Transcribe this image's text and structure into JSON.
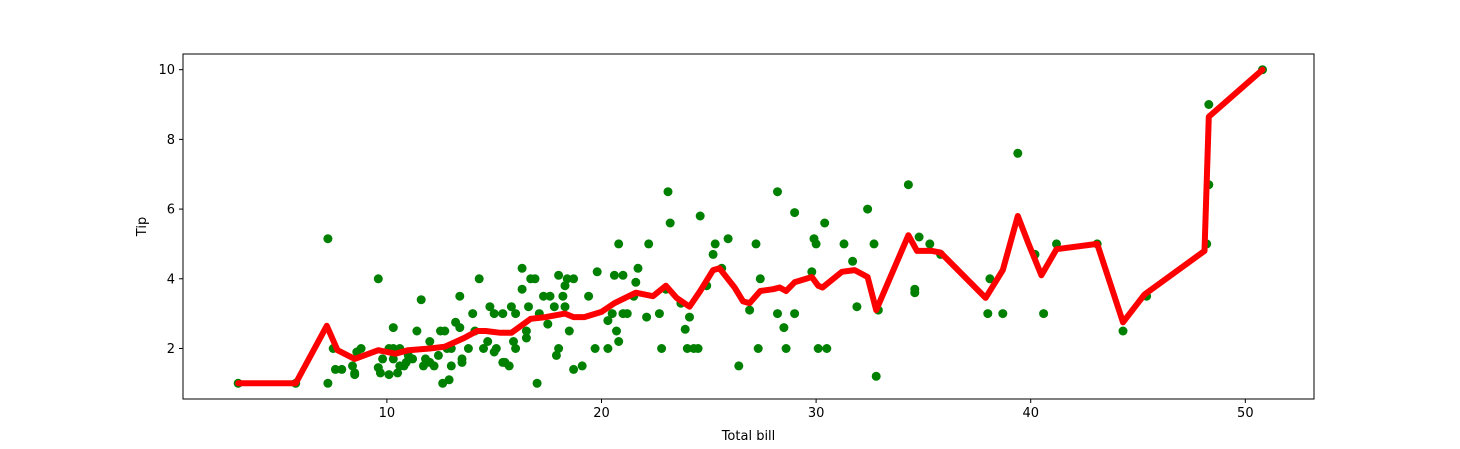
{
  "chart_data": {
    "type": "scatter",
    "xlabel": "Total bill",
    "ylabel": "Tip",
    "xlim": [
      0.5,
      53.2
    ],
    "ylim": [
      0.55,
      10.45
    ],
    "xticks": [
      10,
      20,
      30,
      40,
      50
    ],
    "yticks": [
      2,
      4,
      6,
      8,
      10
    ],
    "grid": false,
    "colors": {
      "points": "#008000",
      "line": "#ff0000",
      "axes": "#000000"
    },
    "series": [
      {
        "type": "scatter",
        "color": "#008000",
        "points": [
          [
            3.07,
            1.0
          ],
          [
            5.75,
            1.0
          ],
          [
            7.25,
            1.0
          ],
          [
            7.25,
            5.15
          ],
          [
            7.5,
            2.0
          ],
          [
            7.6,
            1.4
          ],
          [
            7.9,
            1.4
          ],
          [
            8.4,
            1.5
          ],
          [
            8.5,
            1.3
          ],
          [
            8.6,
            1.9
          ],
          [
            8.8,
            2.0
          ],
          [
            8.5,
            1.25
          ],
          [
            9.6,
            4.0
          ],
          [
            9.6,
            1.45
          ],
          [
            9.7,
            1.3
          ],
          [
            9.8,
            1.7
          ],
          [
            10.1,
            2.0
          ],
          [
            10.1,
            1.25
          ],
          [
            10.3,
            1.7
          ],
          [
            10.3,
            2.6
          ],
          [
            10.3,
            2.0
          ],
          [
            10.5,
            1.3
          ],
          [
            10.6,
            1.5
          ],
          [
            10.6,
            2.0
          ],
          [
            10.8,
            1.5
          ],
          [
            10.9,
            1.6
          ],
          [
            11.0,
            1.8
          ],
          [
            11.2,
            1.7
          ],
          [
            11.4,
            2.5
          ],
          [
            11.6,
            3.4
          ],
          [
            11.7,
            1.5
          ],
          [
            11.8,
            1.7
          ],
          [
            12.0,
            1.6
          ],
          [
            12.0,
            2.2
          ],
          [
            12.2,
            1.5
          ],
          [
            12.4,
            1.8
          ],
          [
            12.5,
            2.5
          ],
          [
            12.6,
            1.0
          ],
          [
            12.7,
            2.5
          ],
          [
            12.8,
            2.0
          ],
          [
            12.9,
            1.1
          ],
          [
            13.0,
            1.5
          ],
          [
            13.0,
            2.0
          ],
          [
            13.2,
            2.75
          ],
          [
            13.4,
            2.6
          ],
          [
            13.4,
            3.5
          ],
          [
            13.5,
            1.6
          ],
          [
            13.5,
            1.7
          ],
          [
            13.8,
            2.0
          ],
          [
            14.0,
            3.0
          ],
          [
            14.1,
            2.5
          ],
          [
            14.3,
            4.0
          ],
          [
            14.5,
            2.0
          ],
          [
            14.7,
            2.2
          ],
          [
            14.8,
            3.2
          ],
          [
            15.0,
            1.9
          ],
          [
            15.0,
            3.0
          ],
          [
            15.1,
            2.0
          ],
          [
            15.4,
            1.6
          ],
          [
            15.4,
            3.0
          ],
          [
            15.5,
            1.6
          ],
          [
            15.7,
            1.5
          ],
          [
            15.8,
            3.2
          ],
          [
            15.9,
            2.2
          ],
          [
            16.0,
            3.0
          ],
          [
            16.0,
            2.0
          ],
          [
            16.3,
            3.7
          ],
          [
            16.3,
            4.3
          ],
          [
            16.5,
            2.3
          ],
          [
            16.5,
            2.5
          ],
          [
            16.6,
            3.2
          ],
          [
            16.7,
            4.0
          ],
          [
            16.9,
            4.0
          ],
          [
            17.0,
            1.0
          ],
          [
            17.1,
            3.0
          ],
          [
            17.3,
            3.5
          ],
          [
            17.5,
            2.7
          ],
          [
            17.6,
            3.5
          ],
          [
            17.8,
            3.2
          ],
          [
            17.9,
            1.8
          ],
          [
            18.0,
            4.1
          ],
          [
            18.0,
            2.0
          ],
          [
            18.2,
            3.5
          ],
          [
            18.3,
            3.8
          ],
          [
            18.3,
            3.2
          ],
          [
            18.4,
            4.0
          ],
          [
            18.5,
            2.5
          ],
          [
            18.7,
            1.4
          ],
          [
            18.7,
            4.0
          ],
          [
            19.1,
            1.5
          ],
          [
            19.4,
            3.5
          ],
          [
            19.7,
            2.0
          ],
          [
            19.8,
            4.2
          ],
          [
            20.3,
            2.0
          ],
          [
            20.3,
            2.8
          ],
          [
            20.5,
            3.0
          ],
          [
            20.6,
            4.1
          ],
          [
            20.7,
            2.5
          ],
          [
            20.8,
            2.2
          ],
          [
            20.8,
            5.0
          ],
          [
            21.0,
            4.1
          ],
          [
            21.0,
            3.0
          ],
          [
            21.2,
            3.0
          ],
          [
            21.5,
            3.5
          ],
          [
            21.6,
            3.9
          ],
          [
            21.7,
            4.3
          ],
          [
            22.1,
            2.9
          ],
          [
            22.2,
            5.0
          ],
          [
            22.7,
            3.0
          ],
          [
            22.8,
            2.0
          ],
          [
            23.0,
            3.7
          ],
          [
            23.1,
            6.5
          ],
          [
            23.2,
            5.6
          ],
          [
            23.7,
            3.3
          ],
          [
            23.9,
            2.55
          ],
          [
            24.0,
            2.0
          ],
          [
            24.1,
            2.9
          ],
          [
            24.3,
            2.0
          ],
          [
            24.5,
            2.0
          ],
          [
            24.6,
            5.8
          ],
          [
            24.9,
            3.8
          ],
          [
            25.2,
            4.7
          ],
          [
            25.3,
            5.0
          ],
          [
            25.6,
            4.3
          ],
          [
            25.9,
            5.15
          ],
          [
            26.4,
            1.5
          ],
          [
            26.9,
            3.1
          ],
          [
            27.2,
            5.0
          ],
          [
            27.3,
            2.0
          ],
          [
            27.4,
            4.0
          ],
          [
            28.2,
            6.5
          ],
          [
            28.2,
            3.0
          ],
          [
            28.5,
            2.6
          ],
          [
            28.6,
            2.0
          ],
          [
            29.0,
            5.9
          ],
          [
            29.0,
            3.0
          ],
          [
            29.8,
            4.2
          ],
          [
            29.9,
            5.15
          ],
          [
            30.0,
            5.0
          ],
          [
            30.1,
            2.0
          ],
          [
            30.4,
            5.6
          ],
          [
            30.5,
            2.0
          ],
          [
            31.3,
            5.0
          ],
          [
            31.7,
            4.5
          ],
          [
            31.9,
            3.2
          ],
          [
            32.4,
            6.0
          ],
          [
            32.7,
            5.0
          ],
          [
            32.8,
            1.2
          ],
          [
            32.9,
            3.1
          ],
          [
            34.3,
            6.7
          ],
          [
            34.6,
            3.7
          ],
          [
            34.6,
            3.6
          ],
          [
            34.8,
            5.2
          ],
          [
            35.3,
            5.0
          ],
          [
            35.8,
            4.7
          ],
          [
            38.0,
            3.0
          ],
          [
            38.1,
            4.0
          ],
          [
            38.7,
            3.0
          ],
          [
            39.4,
            7.6
          ],
          [
            40.2,
            4.7
          ],
          [
            40.6,
            3.0
          ],
          [
            41.2,
            5.0
          ],
          [
            43.1,
            5.0
          ],
          [
            44.3,
            2.5
          ],
          [
            45.4,
            3.5
          ],
          [
            48.2,
            5.0
          ],
          [
            48.3,
            6.7
          ],
          [
            48.3,
            9.0
          ],
          [
            50.8,
            10.0
          ]
        ]
      },
      {
        "type": "line",
        "color": "#ff0000",
        "points": [
          [
            3.07,
            1.0
          ],
          [
            5.75,
            1.0
          ],
          [
            7.2,
            2.65
          ],
          [
            7.7,
            1.95
          ],
          [
            8.5,
            1.7
          ],
          [
            9.6,
            1.95
          ],
          [
            10.4,
            1.85
          ],
          [
            11.0,
            1.95
          ],
          [
            12.0,
            2.0
          ],
          [
            12.7,
            2.05
          ],
          [
            13.6,
            2.3
          ],
          [
            14.2,
            2.5
          ],
          [
            14.6,
            2.5
          ],
          [
            15.3,
            2.45
          ],
          [
            15.8,
            2.45
          ],
          [
            16.7,
            2.85
          ],
          [
            17.4,
            2.9
          ],
          [
            18.3,
            3.0
          ],
          [
            18.7,
            2.9
          ],
          [
            19.2,
            2.9
          ],
          [
            20.0,
            3.05
          ],
          [
            20.6,
            3.3
          ],
          [
            21.1,
            3.45
          ],
          [
            21.6,
            3.6
          ],
          [
            22.4,
            3.5
          ],
          [
            23.0,
            3.8
          ],
          [
            23.5,
            3.45
          ],
          [
            24.1,
            3.2
          ],
          [
            24.6,
            3.65
          ],
          [
            25.2,
            4.25
          ],
          [
            25.5,
            4.3
          ],
          [
            26.2,
            3.75
          ],
          [
            26.6,
            3.35
          ],
          [
            26.9,
            3.3
          ],
          [
            27.4,
            3.65
          ],
          [
            28.0,
            3.7
          ],
          [
            28.3,
            3.75
          ],
          [
            28.6,
            3.65
          ],
          [
            29.0,
            3.9
          ],
          [
            29.8,
            4.05
          ],
          [
            30.1,
            3.8
          ],
          [
            30.3,
            3.75
          ],
          [
            31.2,
            4.2
          ],
          [
            31.8,
            4.25
          ],
          [
            32.4,
            4.05
          ],
          [
            32.8,
            3.1
          ],
          [
            34.3,
            5.25
          ],
          [
            34.7,
            4.8
          ],
          [
            35.4,
            4.8
          ],
          [
            35.8,
            4.75
          ],
          [
            37.9,
            3.45
          ],
          [
            38.7,
            4.25
          ],
          [
            39.4,
            5.8
          ],
          [
            39.9,
            5.0
          ],
          [
            40.5,
            4.1
          ],
          [
            41.2,
            4.85
          ],
          [
            43.1,
            5.0
          ],
          [
            44.3,
            2.75
          ],
          [
            45.3,
            3.55
          ],
          [
            48.1,
            4.8
          ],
          [
            48.3,
            8.65
          ],
          [
            50.8,
            10.0
          ]
        ]
      }
    ]
  }
}
